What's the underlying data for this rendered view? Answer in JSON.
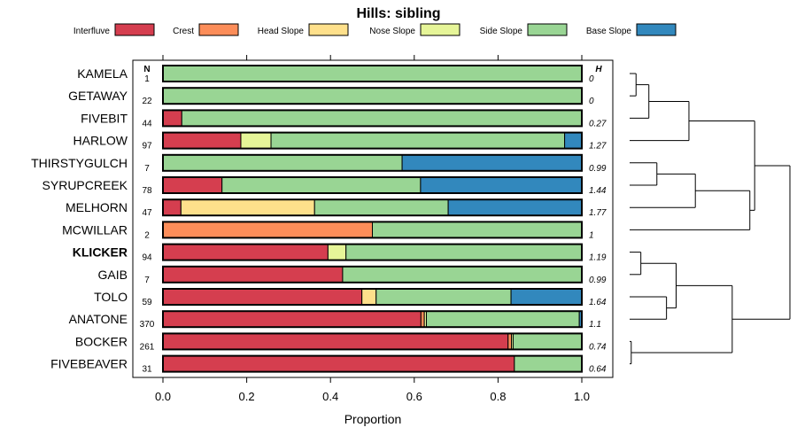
{
  "chart_data": {
    "type": "bar",
    "stacked": true,
    "orientation": "horizontal",
    "title": "Hills: sibling",
    "xlabel": "Proportion",
    "xlim": [
      0,
      1
    ],
    "xticks": [
      "0.0",
      "0.2",
      "0.4",
      "0.6",
      "0.8",
      "1.0"
    ],
    "xtick_values": [
      0,
      0.2,
      0.4,
      0.6,
      0.8,
      1.0
    ],
    "n_header": "N",
    "h_header": "H",
    "legend_position": "top",
    "series": [
      {
        "name": "Interfluve",
        "color": "#d53e4f"
      },
      {
        "name": "Crest",
        "color": "#fc8d59"
      },
      {
        "name": "Head Slope",
        "color": "#fee08b"
      },
      {
        "name": "Nose Slope",
        "color": "#e6f598"
      },
      {
        "name": "Side Slope",
        "color": "#99d594"
      },
      {
        "name": "Base Slope",
        "color": "#3288bd"
      }
    ],
    "rows": [
      {
        "label": "KAMELA",
        "n": "1",
        "h": "0",
        "values": [
          0,
          0,
          0,
          0,
          1.0,
          0
        ]
      },
      {
        "label": "GETAWAY",
        "n": "22",
        "h": "0",
        "values": [
          0,
          0,
          0,
          0,
          1.0,
          0
        ]
      },
      {
        "label": "FIVEBIT",
        "n": "44",
        "h": "0.27",
        "values": [
          0.045,
          0,
          0,
          0,
          0.955,
          0
        ]
      },
      {
        "label": "HARLOW",
        "n": "97",
        "h": "1.27",
        "values": [
          0.186,
          0,
          0,
          0.072,
          0.701,
          0.041
        ]
      },
      {
        "label": "THIRSTYGULCH",
        "n": "7",
        "h": "0.99",
        "values": [
          0,
          0,
          0,
          0,
          0.571,
          0.429
        ]
      },
      {
        "label": "SYRUPCREEK",
        "n": "78",
        "h": "1.44",
        "values": [
          0.141,
          0,
          0,
          0,
          0.474,
          0.385
        ]
      },
      {
        "label": "MELHORN",
        "n": "47",
        "h": "1.77",
        "values": [
          0.043,
          0,
          0.319,
          0,
          0.319,
          0.319
        ]
      },
      {
        "label": "MCWILLAR",
        "n": "2",
        "h": "1",
        "values": [
          0,
          0.5,
          0,
          0,
          0.5,
          0
        ]
      },
      {
        "label": "KLICKER",
        "n": "94",
        "h": "1.19",
        "values": [
          0.394,
          0,
          0,
          0.043,
          0.563,
          0
        ],
        "highlight": true
      },
      {
        "label": "GAIB",
        "n": "7",
        "h": "0.99",
        "values": [
          0.429,
          0,
          0,
          0,
          0.571,
          0
        ]
      },
      {
        "label": "TOLO",
        "n": "59",
        "h": "1.64",
        "values": [
          0.475,
          0,
          0.034,
          0,
          0.322,
          0.169
        ]
      },
      {
        "label": "ANATONE",
        "n": "370",
        "h": "1.1",
        "values": [
          0.616,
          0.008,
          0,
          0.005,
          0.365,
          0.006
        ]
      },
      {
        "label": "BOCKER",
        "n": "261",
        "h": "0.74",
        "values": [
          0.824,
          0.008,
          0,
          0.004,
          0.164,
          0
        ]
      },
      {
        "label": "FIVEBEAVER",
        "n": "31",
        "h": "0.64",
        "values": [
          0.839,
          0,
          0,
          0,
          0.161,
          0
        ]
      }
    ],
    "dendrogram": {
      "leaf_order": [
        "KAMELA",
        "GETAWAY",
        "FIVEBIT",
        "HARLOW",
        "THIRSTYGULCH",
        "SYRUPCREEK",
        "MELHORN",
        "MCWILLAR",
        "KLICKER",
        "GAIB",
        "TOLO",
        "ANATONE",
        "BOCKER",
        "FIVEBEAVER"
      ],
      "merges": [
        {
          "a": 0,
          "b": 1,
          "height": 0.04
        },
        {
          "a": "m0",
          "b": 2,
          "height": 0.12
        },
        {
          "a": "m1",
          "b": 3,
          "height": 0.37
        },
        {
          "a": 4,
          "b": 5,
          "height": 0.17
        },
        {
          "a": "m3",
          "b": 6,
          "height": 0.41
        },
        {
          "a": "m4",
          "b": 7,
          "height": 0.75
        },
        {
          "a": "m2",
          "b": "m5",
          "height": 0.78
        },
        {
          "a": 8,
          "b": 9,
          "height": 0.07
        },
        {
          "a": 11,
          "b": 10,
          "height": 0.23
        },
        {
          "a": "m7",
          "b": "m8",
          "height": 0.29
        },
        {
          "a": 12,
          "b": 13,
          "height": 0.01
        },
        {
          "a": "m9",
          "b": "m10",
          "height": 0.64
        },
        {
          "a": "m6",
          "b": "m11",
          "height": 1.0
        }
      ]
    }
  }
}
